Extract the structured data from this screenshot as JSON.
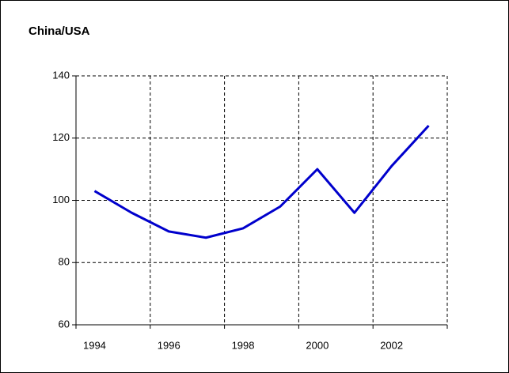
{
  "chart_data": {
    "type": "line",
    "title": "China/USA",
    "categories": [
      "1994",
      null,
      "1996",
      null,
      "1998",
      null,
      "2000",
      null,
      "2002",
      null
    ],
    "series": [
      {
        "name": "China/USA",
        "color": "#0000cc",
        "values": [
          103,
          96,
          90,
          88,
          91,
          98,
          110,
          96,
          111,
          124
        ]
      }
    ],
    "ylim": [
      60,
      140
    ],
    "yticks": [
      60,
      80,
      100,
      120,
      140
    ],
    "grid": true
  }
}
